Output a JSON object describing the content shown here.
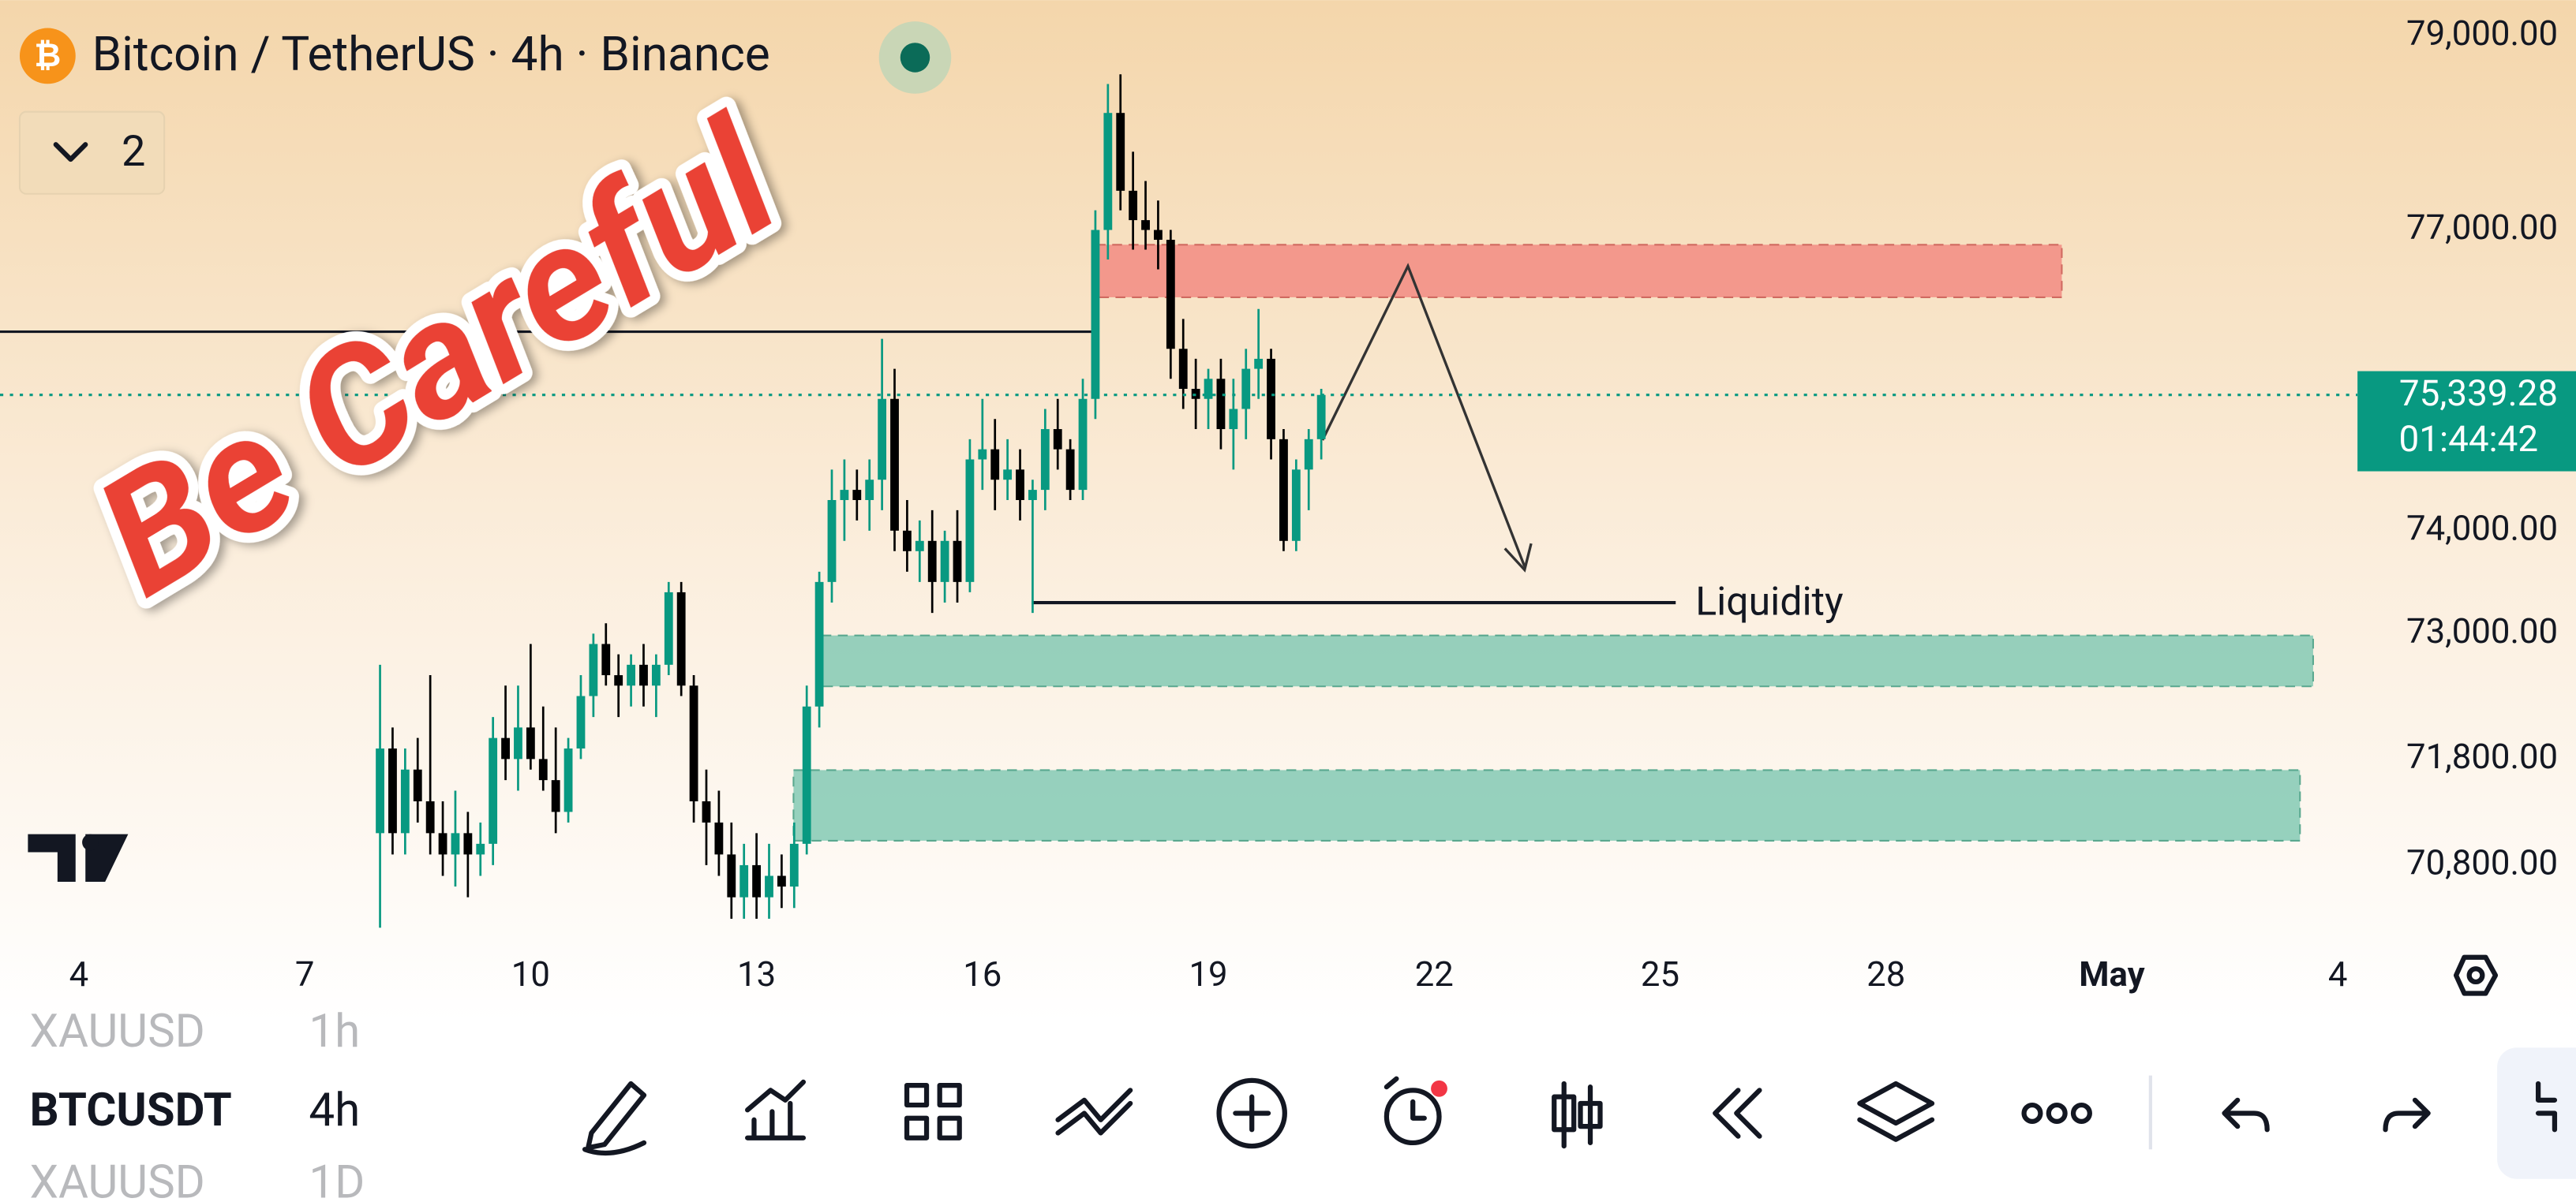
{
  "header": {
    "title": "Bitcoin / TetherUS · 4h · Binance",
    "indicator_count": "2"
  },
  "annotation": "Be Careful",
  "chart_data": {
    "type": "candlestick",
    "log_scale": true,
    "ylim": [
      70217,
      79375
    ],
    "yticks": [
      {
        "value": 79000,
        "label": "79,000.00"
      },
      {
        "value": 77000,
        "label": "77,000.00"
      },
      {
        "value": 74000,
        "label": "74,000.00"
      },
      {
        "value": 73000,
        "label": "73,000.00"
      },
      {
        "value": 71800,
        "label": "71,800.00"
      },
      {
        "value": 70800,
        "label": "70,800.00"
      }
    ],
    "x_labels": [
      "4",
      "7",
      "10",
      "13",
      "16",
      "19",
      "22",
      "25",
      "28",
      "May",
      "4"
    ],
    "up_color": "#089981",
    "down_color": "#000000",
    "open": [
      71100,
      71900,
      71100,
      71700,
      71400,
      71100,
      70900,
      71100,
      70900,
      71000,
      72000,
      71800,
      72100,
      71800,
      71600,
      71300,
      71900,
      72400,
      72900,
      72600,
      72500,
      72700,
      72500,
      72700,
      73400,
      72500,
      71400,
      71200,
      70900,
      70500,
      70800,
      70500,
      70700,
      70600,
      71000,
      72300,
      73500,
      74300,
      74400,
      74300,
      74500,
      75300,
      74000,
      73800,
      73900,
      73500,
      73900,
      73500,
      74700,
      74800,
      74500,
      74600,
      74300,
      74400,
      75000,
      74800,
      74400,
      75300,
      77000,
      78200,
      77400,
      77100,
      77000,
      76900,
      75800,
      75400,
      75300,
      75500,
      75000,
      75200,
      75600,
      75700,
      74900,
      73900,
      74600,
      74900
    ],
    "high": [
      72700,
      72100,
      71900,
      72000,
      72600,
      71400,
      71500,
      71300,
      71200,
      72200,
      72500,
      72500,
      72900,
      72300,
      72100,
      72000,
      72600,
      73000,
      73100,
      72800,
      72800,
      72900,
      72800,
      73500,
      73500,
      72600,
      71700,
      71500,
      71200,
      71000,
      71100,
      71000,
      70900,
      71200,
      72500,
      73600,
      74600,
      74700,
      74600,
      74700,
      75900,
      75600,
      74300,
      74100,
      74200,
      74000,
      74200,
      74900,
      75300,
      75100,
      74900,
      74800,
      74500,
      75200,
      75300,
      74900,
      75500,
      77200,
      78500,
      78600,
      77800,
      77500,
      77300,
      77000,
      76100,
      75700,
      75600,
      75700,
      75500,
      75800,
      76200,
      75800,
      75000,
      74700,
      75000,
      75400
    ],
    "low": [
      70000,
      70900,
      70900,
      71200,
      70900,
      70700,
      70600,
      70500,
      70700,
      70800,
      71600,
      71500,
      71700,
      71500,
      71100,
      71200,
      71800,
      72200,
      72500,
      72200,
      72300,
      72300,
      72200,
      72600,
      72400,
      71200,
      70800,
      70700,
      70300,
      70300,
      70300,
      70300,
      70400,
      70400,
      70900,
      72100,
      73300,
      73900,
      74100,
      74000,
      74200,
      73800,
      73600,
      73500,
      73200,
      73300,
      73300,
      73400,
      74400,
      74200,
      74300,
      74100,
      73200,
      74200,
      74600,
      74300,
      74300,
      75100,
      76700,
      77200,
      76800,
      76800,
      76600,
      75500,
      75200,
      75000,
      75000,
      74800,
      74600,
      74900,
      75300,
      74700,
      73800,
      73800,
      74200,
      74700
    ],
    "close": [
      71900,
      71100,
      71700,
      71400,
      71100,
      70900,
      71100,
      70900,
      71000,
      72000,
      71800,
      72100,
      71800,
      71600,
      71300,
      71900,
      72400,
      72900,
      72600,
      72500,
      72700,
      72500,
      72700,
      73400,
      72500,
      71400,
      71200,
      70900,
      70500,
      70800,
      70500,
      70700,
      70600,
      71000,
      72300,
      73500,
      74300,
      74400,
      74300,
      74500,
      75300,
      74000,
      73800,
      73900,
      73500,
      73900,
      73500,
      74700,
      74800,
      74500,
      74600,
      74300,
      74400,
      75000,
      74800,
      74400,
      75300,
      77000,
      78200,
      77400,
      77100,
      77000,
      76900,
      75800,
      75400,
      75300,
      75500,
      75000,
      75200,
      75600,
      75700,
      74900,
      73900,
      74600,
      74900,
      75339.28
    ],
    "last_price_label": "75,339.28",
    "countdown": "01:44:42",
    "zone_label": "Liquidity"
  },
  "toolbar": {
    "watchlist": [
      {
        "symbol": "XAUUSD",
        "interval": "1h"
      },
      {
        "symbol": "BTCUSDT",
        "interval": "4h"
      },
      {
        "symbol": "XAUUSD",
        "interval": "1D"
      }
    ]
  }
}
